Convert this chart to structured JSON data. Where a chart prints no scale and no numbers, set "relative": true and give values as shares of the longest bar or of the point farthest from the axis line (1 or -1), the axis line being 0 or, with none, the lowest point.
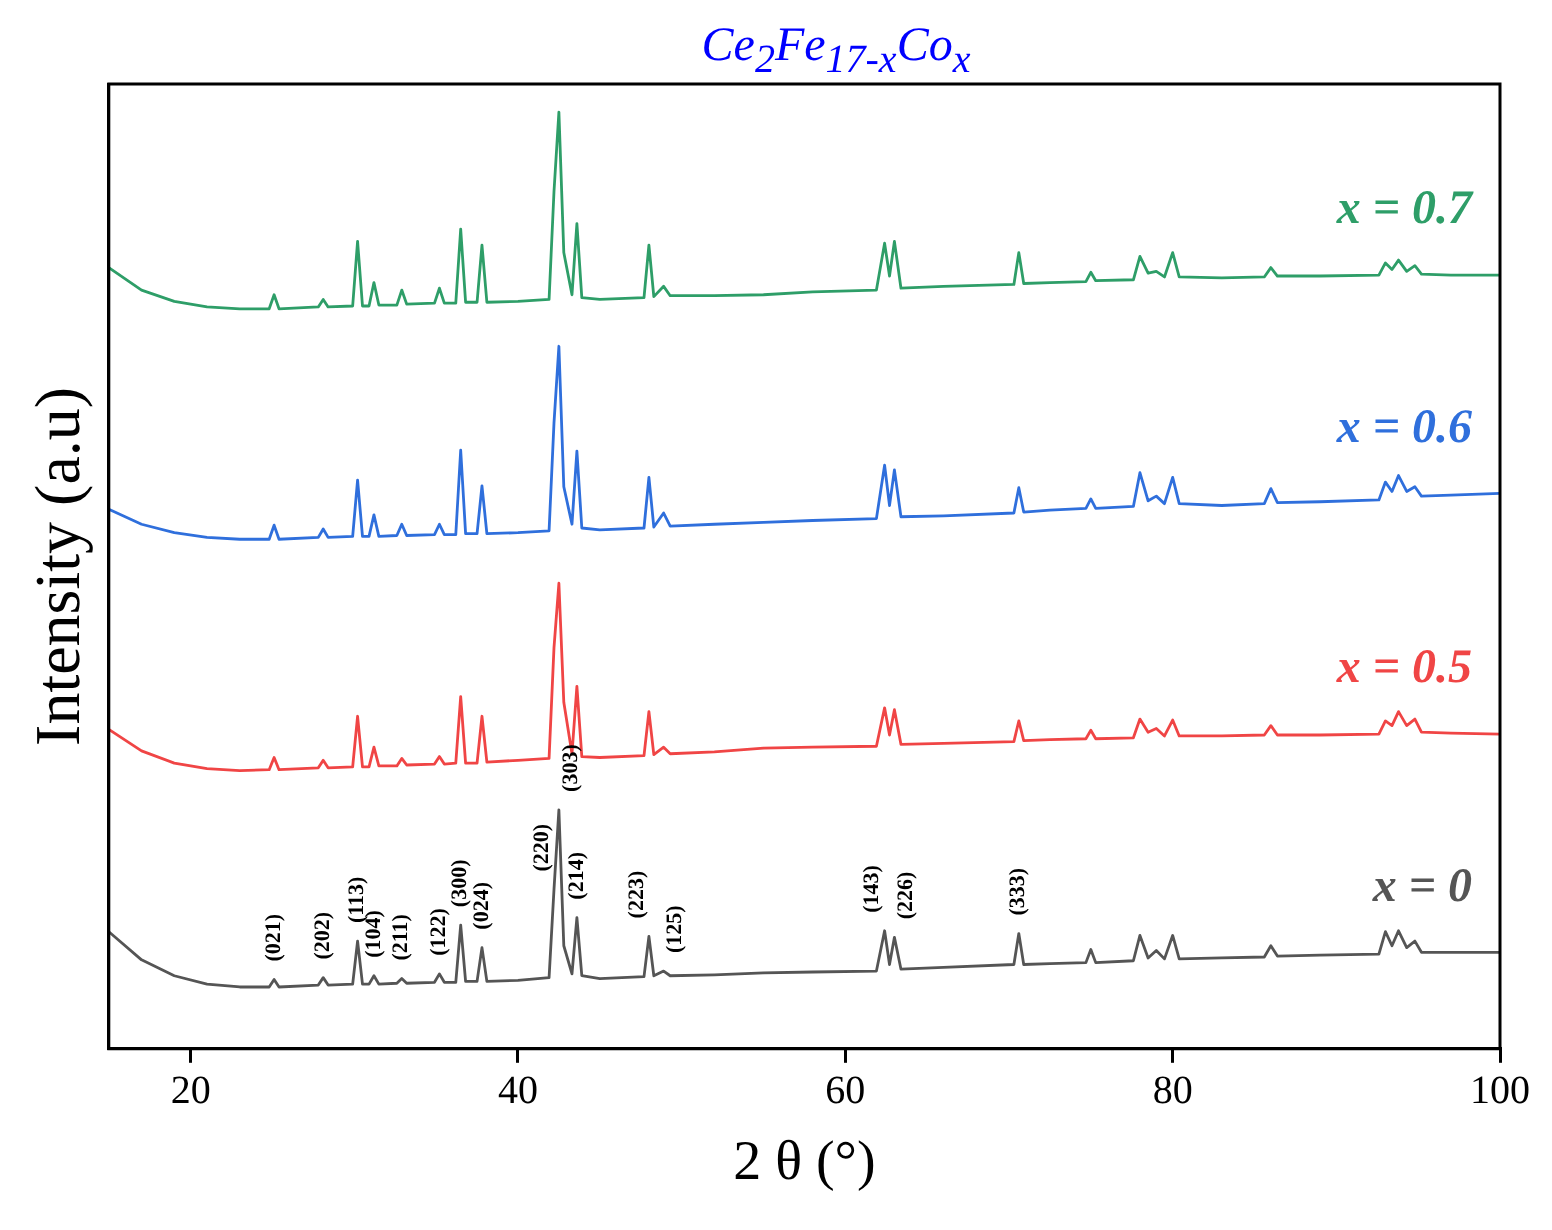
{
  "chart_data": {
    "type": "line",
    "title": "Ce$_{2}$Fe$_{17-x}$Co$_{x}$",
    "xlabel": "2 θ (°)",
    "ylabel": "Intensity (a.u)",
    "relative": true,
    "legend": false,
    "grid": false,
    "xlim": [
      15,
      100
    ],
    "xticks": [
      20,
      40,
      60,
      80,
      100
    ],
    "x": [
      15,
      17,
      19,
      21,
      23,
      24.8,
      25.1,
      25.4,
      27.8,
      28.1,
      28.4,
      29.9,
      30.2,
      30.5,
      30.9,
      31.2,
      31.5,
      32.6,
      32.9,
      33.2,
      34.9,
      35.2,
      35.5,
      36.2,
      36.5,
      36.8,
      37.5,
      37.8,
      38.1,
      40,
      41.9,
      42.2,
      42.5,
      42.8,
      43.3,
      43.6,
      43.9,
      45,
      47.7,
      48.0,
      48.3,
      48.9,
      49.3,
      52,
      55,
      58,
      61.9,
      62.4,
      62.7,
      63.0,
      63.4,
      66,
      70.3,
      70.6,
      70.9,
      72.5,
      74.7,
      75.0,
      75.3,
      77.6,
      78.0,
      78.5,
      79.0,
      79.5,
      80.0,
      80.4,
      83,
      85.6,
      86.0,
      86.4,
      89,
      92.6,
      93.0,
      93.4,
      93.8,
      94.3,
      94.8,
      95.2,
      97,
      100
    ],
    "series": [
      {
        "name": "x = 0",
        "color": "#555555",
        "values": [
          0.125,
          0.095,
          0.078,
          0.069,
          0.066,
          0.066,
          0.074,
          0.066,
          0.068,
          0.076,
          0.068,
          0.069,
          0.115,
          0.069,
          0.069,
          0.078,
          0.069,
          0.07,
          0.075,
          0.07,
          0.071,
          0.08,
          0.071,
          0.071,
          0.132,
          0.072,
          0.072,
          0.108,
          0.072,
          0.073,
          0.076,
          0.17,
          0.255,
          0.11,
          0.08,
          0.14,
          0.078,
          0.075,
          0.077,
          0.12,
          0.078,
          0.083,
          0.078,
          0.079,
          0.081,
          0.082,
          0.083,
          0.126,
          0.09,
          0.119,
          0.085,
          0.087,
          0.09,
          0.123,
          0.09,
          0.091,
          0.092,
          0.106,
          0.092,
          0.094,
          0.121,
          0.097,
          0.105,
          0.096,
          0.121,
          0.096,
          0.097,
          0.098,
          0.11,
          0.099,
          0.1,
          0.101,
          0.125,
          0.11,
          0.126,
          0.108,
          0.115,
          0.103,
          0.103,
          0.103
        ]
      },
      {
        "name": "x = 0.5",
        "color": "#f04545",
        "values": [
          0.341,
          0.318,
          0.305,
          0.299,
          0.297,
          0.298,
          0.311,
          0.298,
          0.3,
          0.308,
          0.3,
          0.301,
          0.355,
          0.301,
          0.301,
          0.322,
          0.302,
          0.302,
          0.31,
          0.303,
          0.304,
          0.312,
          0.304,
          0.305,
          0.376,
          0.305,
          0.305,
          0.355,
          0.306,
          0.308,
          0.31,
          0.428,
          0.497,
          0.37,
          0.315,
          0.387,
          0.312,
          0.311,
          0.313,
          0.36,
          0.314,
          0.322,
          0.315,
          0.317,
          0.321,
          0.322,
          0.323,
          0.364,
          0.335,
          0.362,
          0.325,
          0.326,
          0.328,
          0.35,
          0.329,
          0.33,
          0.331,
          0.34,
          0.331,
          0.332,
          0.352,
          0.338,
          0.342,
          0.334,
          0.351,
          0.334,
          0.334,
          0.335,
          0.345,
          0.335,
          0.335,
          0.336,
          0.35,
          0.345,
          0.36,
          0.345,
          0.352,
          0.338,
          0.337,
          0.336
        ]
      },
      {
        "name": "x = 0.6",
        "color": "#2f6fdc",
        "values": [
          0.576,
          0.56,
          0.551,
          0.546,
          0.544,
          0.544,
          0.559,
          0.544,
          0.546,
          0.555,
          0.546,
          0.547,
          0.607,
          0.547,
          0.547,
          0.57,
          0.547,
          0.548,
          0.56,
          0.548,
          0.549,
          0.56,
          0.549,
          0.549,
          0.639,
          0.55,
          0.55,
          0.601,
          0.55,
          0.551,
          0.553,
          0.668,
          0.75,
          0.6,
          0.56,
          0.638,
          0.556,
          0.554,
          0.556,
          0.61,
          0.557,
          0.572,
          0.558,
          0.56,
          0.562,
          0.564,
          0.566,
          0.623,
          0.58,
          0.618,
          0.568,
          0.569,
          0.572,
          0.599,
          0.573,
          0.575,
          0.577,
          0.587,
          0.577,
          0.579,
          0.615,
          0.585,
          0.59,
          0.582,
          0.61,
          0.582,
          0.58,
          0.582,
          0.598,
          0.583,
          0.584,
          0.586,
          0.605,
          0.595,
          0.612,
          0.595,
          0.6,
          0.59,
          0.591,
          0.593
        ]
      },
      {
        "name": "x = 0.7",
        "color": "#2e9e68",
        "values": [
          0.834,
          0.81,
          0.798,
          0.792,
          0.79,
          0.79,
          0.805,
          0.79,
          0.792,
          0.8,
          0.792,
          0.793,
          0.862,
          0.793,
          0.793,
          0.818,
          0.794,
          0.794,
          0.81,
          0.795,
          0.796,
          0.812,
          0.796,
          0.796,
          0.875,
          0.797,
          0.797,
          0.858,
          0.797,
          0.798,
          0.8,
          0.915,
          1.0,
          0.85,
          0.805,
          0.881,
          0.802,
          0.8,
          0.802,
          0.858,
          0.803,
          0.814,
          0.804,
          0.804,
          0.805,
          0.808,
          0.81,
          0.86,
          0.825,
          0.862,
          0.812,
          0.814,
          0.816,
          0.85,
          0.817,
          0.818,
          0.819,
          0.829,
          0.82,
          0.821,
          0.846,
          0.828,
          0.83,
          0.824,
          0.85,
          0.824,
          0.823,
          0.824,
          0.834,
          0.825,
          0.825,
          0.826,
          0.839,
          0.832,
          0.842,
          0.83,
          0.836,
          0.827,
          0.826,
          0.826
        ]
      }
    ],
    "annotations": [
      {
        "text": "(021)",
        "x": 25.1,
        "y": 0.074
      },
      {
        "text": "(202)",
        "x": 28.1,
        "y": 0.076
      },
      {
        "text": "(113)",
        "x": 30.2,
        "y": 0.115
      },
      {
        "text": "(104)",
        "x": 31.2,
        "y": 0.078
      },
      {
        "text": "(211)",
        "x": 32.9,
        "y": 0.075
      },
      {
        "text": "(122)",
        "x": 35.2,
        "y": 0.08
      },
      {
        "text": "(300)",
        "x": 36.5,
        "y": 0.132
      },
      {
        "text": "(024)",
        "x": 37.8,
        "y": 0.108
      },
      {
        "text": "(220)",
        "x": 42.2,
        "y": 0.17
      },
      {
        "text": "(303)",
        "x": 42.5,
        "y": 0.255
      },
      {
        "text": "(214)",
        "x": 43.6,
        "y": 0.14
      },
      {
        "text": "(223)",
        "x": 48.0,
        "y": 0.12
      },
      {
        "text": "(125)",
        "x": 48.9,
        "y": 0.083
      },
      {
        "text": "(143)",
        "x": 62.4,
        "y": 0.126
      },
      {
        "text": "(226)",
        "x": 63.0,
        "y": 0.119
      },
      {
        "text": "(333)",
        "x": 70.6,
        "y": 0.123
      }
    ]
  }
}
